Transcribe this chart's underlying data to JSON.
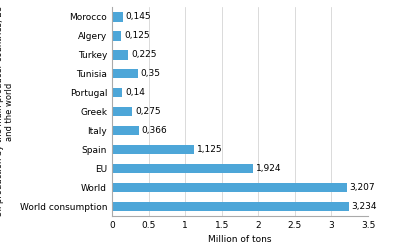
{
  "categories": [
    "World consumption",
    "World",
    "EU",
    "Spain",
    "Italy",
    "Greek",
    "Portugal",
    "Tunisia",
    "Turkey",
    "Algery",
    "Morocco"
  ],
  "values": [
    3.234,
    3.207,
    1.924,
    1.125,
    0.366,
    0.275,
    0.14,
    0.35,
    0.225,
    0.125,
    0.145
  ],
  "bar_color": "#4da6d8",
  "xlabel": "Million of tons",
  "ylabel": "Oil production by the main producer countries, EU\nand the world",
  "xlim": [
    0,
    3.5
  ],
  "xticks": [
    0,
    0.5,
    1,
    1.5,
    2,
    2.5,
    3,
    3.5
  ],
  "xtick_labels": [
    "0",
    "0.5",
    "1",
    "1.5",
    "2",
    "2.5",
    "3",
    "3.5"
  ],
  "value_labels": [
    "3,234",
    "3,207",
    "1,924",
    "1,125",
    "0,366",
    "0,275",
    "0,14",
    "0,35",
    "0,225",
    "0,125",
    "0,145"
  ],
  "label_fontsize": 6.5,
  "tick_fontsize": 6.5,
  "value_fontsize": 6.5,
  "ylabel_fontsize": 6.0,
  "bar_height": 0.5
}
